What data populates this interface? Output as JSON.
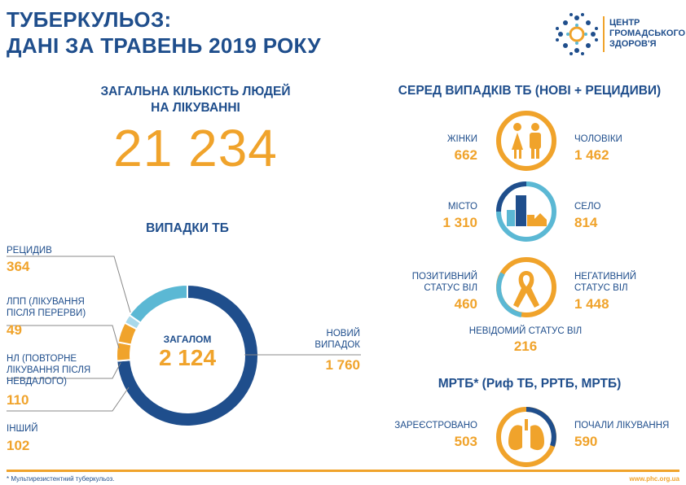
{
  "header": {
    "title_line1": "ТУБЕРКУЛЬОЗ:",
    "title_line2": "ДАНІ ЗА ТРАВЕНЬ 2019 РОКУ",
    "logo_line1": "ЦЕНТР",
    "logo_line2": "ГРОМАДСЬКОГО",
    "logo_line3": "ЗДОРОВ'Я"
  },
  "treatment": {
    "label_line1": "ЗАГАЛЬНА КІЛЬКІСТЬ ЛЮДЕЙ",
    "label_line2": "НА ЛІКУВАННІ",
    "value": "21 234"
  },
  "cases": {
    "title": "ВИПАДКИ ТБ",
    "total_label": "ЗАГАЛОМ",
    "total_value": "2 124",
    "relapse_label": "РЕЦИДИВ",
    "relapse_value": "364",
    "ltfu_line1": "ЛПП (ЛІКУВАННЯ",
    "ltfu_line2": "ПІСЛЯ ПЕРЕРВИ)",
    "ltfu_value": "49",
    "failure_line1": "НЛ (ПОВТОРНЕ",
    "failure_line2": "ЛІКУВАННЯ ПІСЛЯ",
    "failure_line3": "НЕВДАЛОГО)",
    "failure_value": "110",
    "other_label": "ІНШИЙ",
    "other_value": "102",
    "new_line1": "НОВИЙ",
    "new_line2": "ВИПАДОК",
    "new_value": "1 760"
  },
  "chart_data": {
    "type": "pie",
    "categories": [
      "НОВИЙ ВИПАДОК",
      "РЕЦИДИВ",
      "ЛПП (ЛІКУВАННЯ ПІСЛЯ ПЕРЕРВИ)",
      "НЛ (ПОВТОРНЕ ЛІКУВАННЯ ПІСЛЯ НЕВДАЛОГО)",
      "ІНШИЙ"
    ],
    "values": [
      1760,
      364,
      49,
      110,
      102
    ],
    "colors": [
      "#1f4e8c",
      "#5bb8d4",
      "#a9d9ea",
      "#f0a32b",
      "#f0a32b"
    ]
  },
  "among": {
    "title": "СЕРЕД ВИПАДКІВ ТБ (НОВІ + РЕЦИДИВИ)",
    "women_label": "ЖІНКИ",
    "women_value": "662",
    "men_label": "ЧОЛОВІКИ",
    "men_value": "1 462",
    "city_label": "МІСТО",
    "city_value": "1 310",
    "village_label": "СЕЛО",
    "village_value": "814",
    "pos_line1": "ПОЗИТИВНИЙ",
    "pos_line2": "СТАТУС ВІЛ",
    "pos_value": "460",
    "neg_line1": "НЕГАТИВНИЙ",
    "neg_line2": "СТАТУС  ВІЛ",
    "neg_value": "1 448",
    "unknown_label": "НЕВІДОМИЙ СТАТУС ВІЛ",
    "unknown_value": "216"
  },
  "mdr": {
    "title": "МРТБ* (Риф ТБ, РРТБ, МРТБ)",
    "registered_label": "ЗАРЕЄСТРОВАНО",
    "registered_value": "503",
    "started_label": "ПОЧАЛИ ЛІКУВАННЯ",
    "started_value": "590"
  },
  "footer": {
    "note": "* Мультирезистентний туберкульоз.",
    "url": "www.phc.org.ua"
  },
  "colors": {
    "blue": "#1f4e8c",
    "orange": "#f0a32b",
    "light_blue": "#5bb8d4"
  }
}
